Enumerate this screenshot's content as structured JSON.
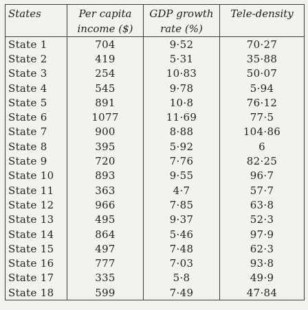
{
  "table": {
    "headers": {
      "states": "States",
      "income_line1": "Per capita",
      "income_line2": "income ($)",
      "gdp_line1": "GDP growth",
      "gdp_line2": "rate (%)",
      "tele": "Tele-density"
    },
    "rows": [
      {
        "state": "State 1",
        "income": "704",
        "gdp": "9·52",
        "tele": "70·27"
      },
      {
        "state": "State 2",
        "income": "419",
        "gdp": "5·31",
        "tele": "35·88"
      },
      {
        "state": "State 3",
        "income": "254",
        "gdp": "10·83",
        "tele": "50·07"
      },
      {
        "state": "State 4",
        "income": "545",
        "gdp": "9·78",
        "tele": "5·94"
      },
      {
        "state": "State 5",
        "income": "891",
        "gdp": "10·8",
        "tele": "76·12"
      },
      {
        "state": "State 6",
        "income": "1077",
        "gdp": "11·69",
        "tele": "77·5"
      },
      {
        "state": "State 7",
        "income": "900",
        "gdp": "8·88",
        "tele": "104·86"
      },
      {
        "state": "State 8",
        "income": "395",
        "gdp": "5·92",
        "tele": "6"
      },
      {
        "state": "State 9",
        "income": "720",
        "gdp": "7·76",
        "tele": "82·25"
      },
      {
        "state": "State 10",
        "income": "893",
        "gdp": "9·55",
        "tele": "96·7"
      },
      {
        "state": "State 11",
        "income": "363",
        "gdp": "4·7",
        "tele": "57·7"
      },
      {
        "state": "State 12",
        "income": "966",
        "gdp": "7·85",
        "tele": "63·8"
      },
      {
        "state": "State 13",
        "income": "495",
        "gdp": "9·37",
        "tele": "52·3"
      },
      {
        "state": "State 14",
        "income": "864",
        "gdp": "5·46",
        "tele": "97·9"
      },
      {
        "state": "State 15",
        "income": "497",
        "gdp": "7·48",
        "tele": "62·3"
      },
      {
        "state": "State 16",
        "income": "777",
        "gdp": "7·03",
        "tele": "93·8"
      },
      {
        "state": "State 17",
        "income": "335",
        "gdp": "5·8",
        "tele": "49·9"
      },
      {
        "state": "State 18",
        "income": "599",
        "gdp": "7·49",
        "tele": "47·84"
      }
    ]
  }
}
